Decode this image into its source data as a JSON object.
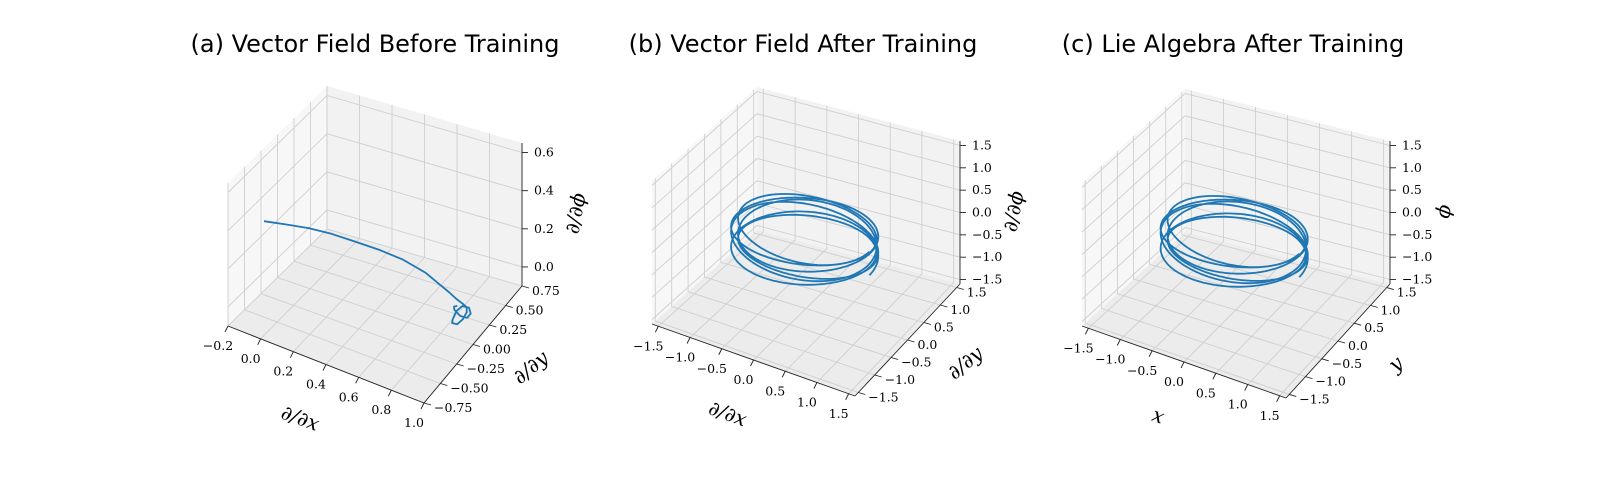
{
  "chart_data": [
    {
      "type": "line3d",
      "title": "(a) Vector Field Before Training",
      "xlabel": "∂/∂x",
      "ylabel": "∂/∂y",
      "zlabel": "∂/∂ϕ",
      "xlim": [
        -0.2,
        1.0
      ],
      "ylim": [
        -0.75,
        0.75
      ],
      "zlim": [
        -0.1,
        0.65
      ],
      "xticks": [
        "−0.2",
        "0.0",
        "0.2",
        "0.4",
        "0.6",
        "0.8",
        "1.0"
      ],
      "yticks": [
        "−0.75",
        "−0.50",
        "−0.25",
        "0.00",
        "0.25",
        "0.50",
        "0.75"
      ],
      "zticks": [
        "0.0",
        "0.2",
        "0.4",
        "0.6"
      ],
      "color": "#1f77b4",
      "series": [
        {
          "x": [
            0.0,
            0.1,
            0.2,
            0.3,
            0.4,
            0.5,
            0.6,
            0.7,
            0.76,
            0.8,
            0.83,
            0.85,
            0.86,
            0.85,
            0.83,
            0.81,
            0.8,
            0.82,
            0.85,
            0.88,
            0.9,
            0.89,
            0.86,
            0.83,
            0.81,
            0.82,
            0.84
          ],
          "y": [
            -0.7,
            -0.62,
            -0.52,
            -0.42,
            -0.32,
            -0.2,
            -0.08,
            0.02,
            0.08,
            0.12,
            0.16,
            0.2,
            0.24,
            0.27,
            0.26,
            0.22,
            0.17,
            0.13,
            0.11,
            0.13,
            0.18,
            0.23,
            0.25,
            0.22,
            0.18,
            0.15,
            0.15
          ],
          "z": [
            0.5,
            0.49,
            0.47,
            0.44,
            0.4,
            0.35,
            0.29,
            0.22,
            0.16,
            0.12,
            0.08,
            0.05,
            0.02,
            -0.02,
            -0.06,
            -0.08,
            -0.06,
            -0.02,
            0.04,
            0.07,
            0.05,
            0.0,
            -0.04,
            -0.03,
            0.01,
            0.04,
            0.05
          ]
        }
      ]
    },
    {
      "type": "line3d",
      "title": "(b) Vector Field After Training",
      "xlabel": "∂/∂x",
      "ylabel": "∂/∂y",
      "zlabel": "∂/∂ϕ",
      "xlim": [
        -1.6,
        1.6
      ],
      "ylim": [
        -1.6,
        1.6
      ],
      "zlim": [
        -1.6,
        1.6
      ],
      "xticks": [
        "−1.5",
        "−1.0",
        "−0.5",
        "0.0",
        "0.5",
        "1.0",
        "1.5"
      ],
      "yticks": [
        "−1.5",
        "−1.0",
        "−0.5",
        "0.0",
        "0.5",
        "1.0",
        "1.5"
      ],
      "zticks": [
        "−1.5",
        "−1.0",
        "−0.5",
        "0.0",
        "0.5",
        "1.0",
        "1.5"
      ],
      "color": "#1f77b4",
      "helix": {
        "radius": 1.0,
        "z_start": -0.25,
        "z_end": 0.35,
        "turns": 6
      }
    },
    {
      "type": "line3d",
      "title": "(c) Lie Algebra After Training",
      "xlabel": "x",
      "ylabel": "y",
      "zlabel": "ϕ",
      "xlim": [
        -1.6,
        1.6
      ],
      "ylim": [
        -1.6,
        1.6
      ],
      "zlim": [
        -1.6,
        1.6
      ],
      "xticks": [
        "−1.5",
        "−1.0",
        "−0.5",
        "0.0",
        "0.5",
        "1.0",
        "1.5"
      ],
      "yticks": [
        "−1.5",
        "−1.0",
        "−0.5",
        "0.0",
        "0.5",
        "1.0",
        "1.5"
      ],
      "zticks": [
        "−1.5",
        "−1.0",
        "−0.5",
        "0.0",
        "0.5",
        "1.0",
        "1.5"
      ],
      "color": "#1f77b4",
      "helix": {
        "radius": 1.0,
        "z_start": -0.25,
        "z_end": 0.35,
        "turns": 6
      }
    }
  ]
}
